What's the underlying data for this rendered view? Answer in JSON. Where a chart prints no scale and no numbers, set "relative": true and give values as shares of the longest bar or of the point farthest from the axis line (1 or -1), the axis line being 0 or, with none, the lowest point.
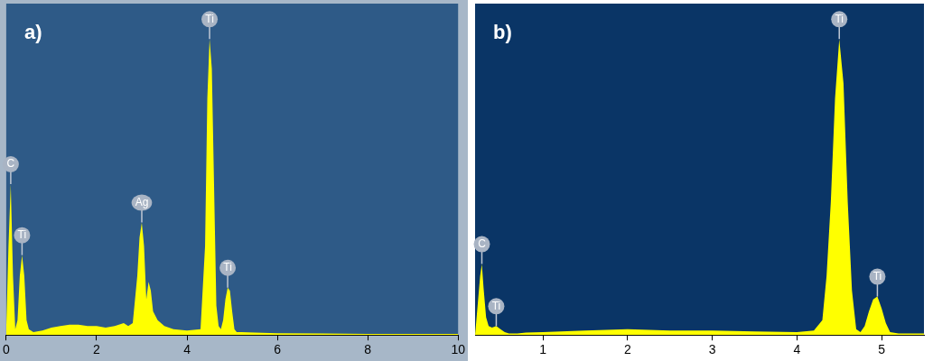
{
  "chart_data": [
    {
      "type": "area",
      "title": "a)",
      "relative": true,
      "xlim": [
        0,
        10
      ],
      "xticks": [
        0,
        2,
        4,
        6,
        8,
        10
      ],
      "x": [
        0,
        0.05,
        0.1,
        0.15,
        0.2,
        0.25,
        0.3,
        0.35,
        0.4,
        0.45,
        0.5,
        0.6,
        0.8,
        1.0,
        1.2,
        1.4,
        1.6,
        1.8,
        2.0,
        2.2,
        2.4,
        2.6,
        2.7,
        2.8,
        2.9,
        2.95,
        3.0,
        3.05,
        3.1,
        3.15,
        3.2,
        3.25,
        3.35,
        3.5,
        3.7,
        4.0,
        4.3,
        4.4,
        4.45,
        4.5,
        4.55,
        4.6,
        4.65,
        4.7,
        4.75,
        4.8,
        4.85,
        4.9,
        4.95,
        5.0,
        5.05,
        5.1,
        5.2,
        5.5,
        6,
        7,
        8,
        9,
        10
      ],
      "series": [
        {
          "color": "#ffff00",
          "values": [
            0.02,
            0.3,
            0.51,
            0.2,
            0.02,
            0.05,
            0.2,
            0.27,
            0.2,
            0.05,
            0.02,
            0.01,
            0.015,
            0.025,
            0.03,
            0.035,
            0.035,
            0.03,
            0.03,
            0.025,
            0.03,
            0.04,
            0.03,
            0.04,
            0.2,
            0.33,
            0.38,
            0.3,
            0.12,
            0.18,
            0.15,
            0.08,
            0.05,
            0.03,
            0.02,
            0.015,
            0.02,
            0.3,
            0.8,
            1.0,
            0.9,
            0.5,
            0.1,
            0.03,
            0.02,
            0.05,
            0.12,
            0.16,
            0.15,
            0.08,
            0.02,
            0.01,
            0.01,
            0.008,
            0.006,
            0.005,
            0.004,
            0.004,
            0.004
          ]
        }
      ],
      "annotations": [
        {
          "text": "C",
          "x": 0.1,
          "y": 0.51
        },
        {
          "text": "Ti",
          "x": 0.35,
          "y": 0.27
        },
        {
          "text": "Ag",
          "x": 3.0,
          "y": 0.38
        },
        {
          "text": "Ti",
          "x": 4.5,
          "y": 1.0
        },
        {
          "text": "Ti",
          "x": 4.9,
          "y": 0.16
        }
      ]
    },
    {
      "type": "area",
      "title": "b)",
      "relative": true,
      "xlim": [
        0.2,
        5.5
      ],
      "xticks": [
        1,
        2,
        3,
        4,
        5
      ],
      "x": [
        0.2,
        0.23,
        0.26,
        0.28,
        0.3,
        0.33,
        0.36,
        0.4,
        0.45,
        0.5,
        0.55,
        0.6,
        0.7,
        0.8,
        1.0,
        1.5,
        2.0,
        2.5,
        3.0,
        3.5,
        4.0,
        4.2,
        4.3,
        4.35,
        4.4,
        4.45,
        4.5,
        4.55,
        4.6,
        4.65,
        4.7,
        4.75,
        4.8,
        4.85,
        4.9,
        4.95,
        5.0,
        5.05,
        5.1,
        5.2,
        5.5
      ],
      "series": [
        {
          "color": "#ffff00",
          "values": [
            0.0,
            0.1,
            0.2,
            0.24,
            0.16,
            0.06,
            0.03,
            0.025,
            0.03,
            0.02,
            0.01,
            0.005,
            0.005,
            0.008,
            0.01,
            0.015,
            0.02,
            0.015,
            0.015,
            0.012,
            0.01,
            0.015,
            0.05,
            0.2,
            0.45,
            0.8,
            1.0,
            0.85,
            0.45,
            0.15,
            0.02,
            0.01,
            0.03,
            0.08,
            0.12,
            0.13,
            0.09,
            0.04,
            0.01,
            0.005,
            0.005
          ]
        }
      ],
      "annotations": [
        {
          "text": "C",
          "x": 0.28,
          "y": 0.24
        },
        {
          "text": "Ti",
          "x": 0.45,
          "y": 0.03
        },
        {
          "text": "Ti",
          "x": 4.5,
          "y": 1.0
        },
        {
          "text": "Ti",
          "x": 4.95,
          "y": 0.13
        }
      ]
    }
  ]
}
